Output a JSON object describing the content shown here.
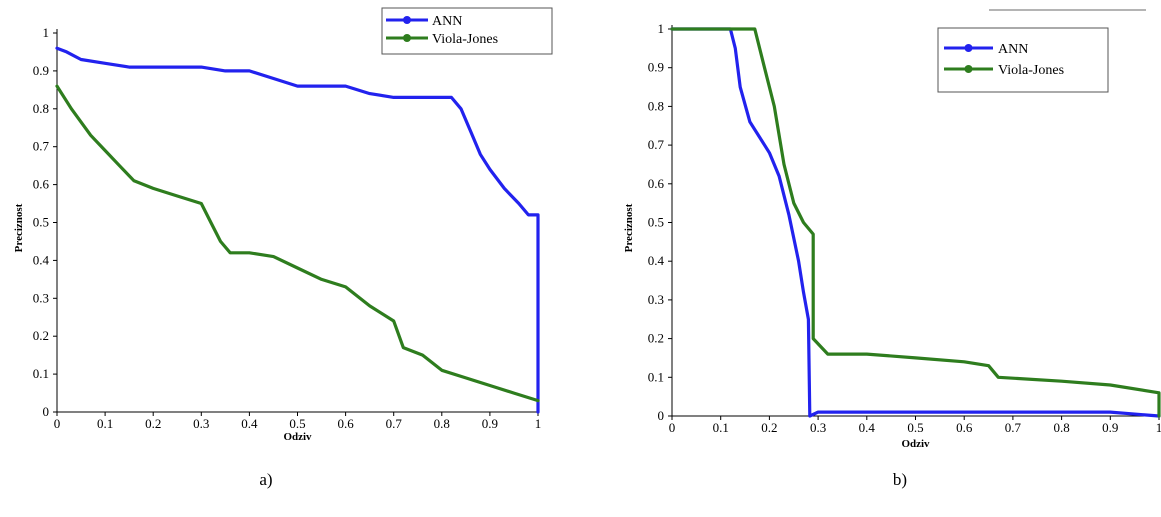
{
  "chart_data": [
    {
      "type": "line",
      "panel_label": "a)",
      "xlabel": "Odziv",
      "ylabel": "Preciznost",
      "xlim": [
        0,
        1
      ],
      "ylim": [
        0,
        1
      ],
      "x_ticks": [
        "0",
        "0.1",
        "0.2",
        "0.3",
        "0.4",
        "0.5",
        "0.6",
        "0.7",
        "0.8",
        "0.9",
        "1"
      ],
      "y_ticks": [
        "0",
        "0.1",
        "0.2",
        "0.3",
        "0.4",
        "0.5",
        "0.6",
        "0.7",
        "0.8",
        "0.9",
        "1"
      ],
      "legend_position": "top-right",
      "series": [
        {
          "name": "ANN",
          "color": "#2222ee",
          "points": [
            [
              0,
              0.96
            ],
            [
              0.02,
              0.95
            ],
            [
              0.05,
              0.93
            ],
            [
              0.1,
              0.92
            ],
            [
              0.15,
              0.91
            ],
            [
              0.2,
              0.91
            ],
            [
              0.3,
              0.91
            ],
            [
              0.35,
              0.9
            ],
            [
              0.4,
              0.9
            ],
            [
              0.45,
              0.88
            ],
            [
              0.5,
              0.86
            ],
            [
              0.55,
              0.86
            ],
            [
              0.6,
              0.86
            ],
            [
              0.65,
              0.84
            ],
            [
              0.7,
              0.83
            ],
            [
              0.75,
              0.83
            ],
            [
              0.82,
              0.83
            ],
            [
              0.84,
              0.8
            ],
            [
              0.86,
              0.74
            ],
            [
              0.88,
              0.68
            ],
            [
              0.9,
              0.64
            ],
            [
              0.93,
              0.59
            ],
            [
              0.96,
              0.55
            ],
            [
              0.98,
              0.52
            ],
            [
              1.0,
              0.52
            ],
            [
              1.0,
              0.0
            ]
          ]
        },
        {
          "name": "Viola-Jones",
          "color": "#2e7d1e",
          "points": [
            [
              0,
              0.86
            ],
            [
              0.03,
              0.8
            ],
            [
              0.07,
              0.73
            ],
            [
              0.1,
              0.69
            ],
            [
              0.13,
              0.65
            ],
            [
              0.16,
              0.61
            ],
            [
              0.2,
              0.59
            ],
            [
              0.25,
              0.57
            ],
            [
              0.3,
              0.55
            ],
            [
              0.32,
              0.5
            ],
            [
              0.34,
              0.45
            ],
            [
              0.36,
              0.42
            ],
            [
              0.4,
              0.42
            ],
            [
              0.45,
              0.41
            ],
            [
              0.5,
              0.38
            ],
            [
              0.55,
              0.35
            ],
            [
              0.6,
              0.33
            ],
            [
              0.65,
              0.28
            ],
            [
              0.7,
              0.24
            ],
            [
              0.72,
              0.17
            ],
            [
              0.76,
              0.15
            ],
            [
              0.8,
              0.11
            ],
            [
              0.85,
              0.09
            ],
            [
              0.9,
              0.07
            ],
            [
              0.95,
              0.05
            ],
            [
              1.0,
              0.03
            ]
          ]
        }
      ]
    },
    {
      "type": "line",
      "panel_label": "b)",
      "xlabel": "Odziv",
      "ylabel": "Preciznost",
      "xlim": [
        0,
        1
      ],
      "ylim": [
        0,
        1
      ],
      "x_ticks": [
        "0",
        "0.1",
        "0.2",
        "0.3",
        "0.4",
        "0.5",
        "0.6",
        "0.7",
        "0.8",
        "0.9",
        "1"
      ],
      "y_ticks": [
        "0",
        "0.1",
        "0.2",
        "0.3",
        "0.4",
        "0.5",
        "0.6",
        "0.7",
        "0.8",
        "0.9",
        "1"
      ],
      "legend_position": "top-right",
      "series": [
        {
          "name": "ANN",
          "color": "#2222ee",
          "points": [
            [
              0,
              1.0
            ],
            [
              0.12,
              1.0
            ],
            [
              0.13,
              0.95
            ],
            [
              0.14,
              0.85
            ],
            [
              0.16,
              0.76
            ],
            [
              0.18,
              0.72
            ],
            [
              0.2,
              0.68
            ],
            [
              0.22,
              0.62
            ],
            [
              0.24,
              0.52
            ],
            [
              0.26,
              0.4
            ],
            [
              0.27,
              0.32
            ],
            [
              0.28,
              0.25
            ],
            [
              0.283,
              0.0
            ],
            [
              0.3,
              0.01
            ],
            [
              0.5,
              0.01
            ],
            [
              0.7,
              0.01
            ],
            [
              0.9,
              0.01
            ],
            [
              1.0,
              0.0
            ]
          ]
        },
        {
          "name": "Viola-Jones",
          "color": "#2e7d1e",
          "points": [
            [
              0,
              1.0
            ],
            [
              0.17,
              1.0
            ],
            [
              0.19,
              0.9
            ],
            [
              0.21,
              0.8
            ],
            [
              0.23,
              0.65
            ],
            [
              0.25,
              0.55
            ],
            [
              0.27,
              0.5
            ],
            [
              0.29,
              0.47
            ],
            [
              0.29,
              0.2
            ],
            [
              0.32,
              0.16
            ],
            [
              0.4,
              0.16
            ],
            [
              0.5,
              0.15
            ],
            [
              0.6,
              0.14
            ],
            [
              0.65,
              0.13
            ],
            [
              0.67,
              0.1
            ],
            [
              0.8,
              0.09
            ],
            [
              0.9,
              0.08
            ],
            [
              1.0,
              0.06
            ],
            [
              1.0,
              0.0
            ]
          ]
        }
      ]
    }
  ]
}
